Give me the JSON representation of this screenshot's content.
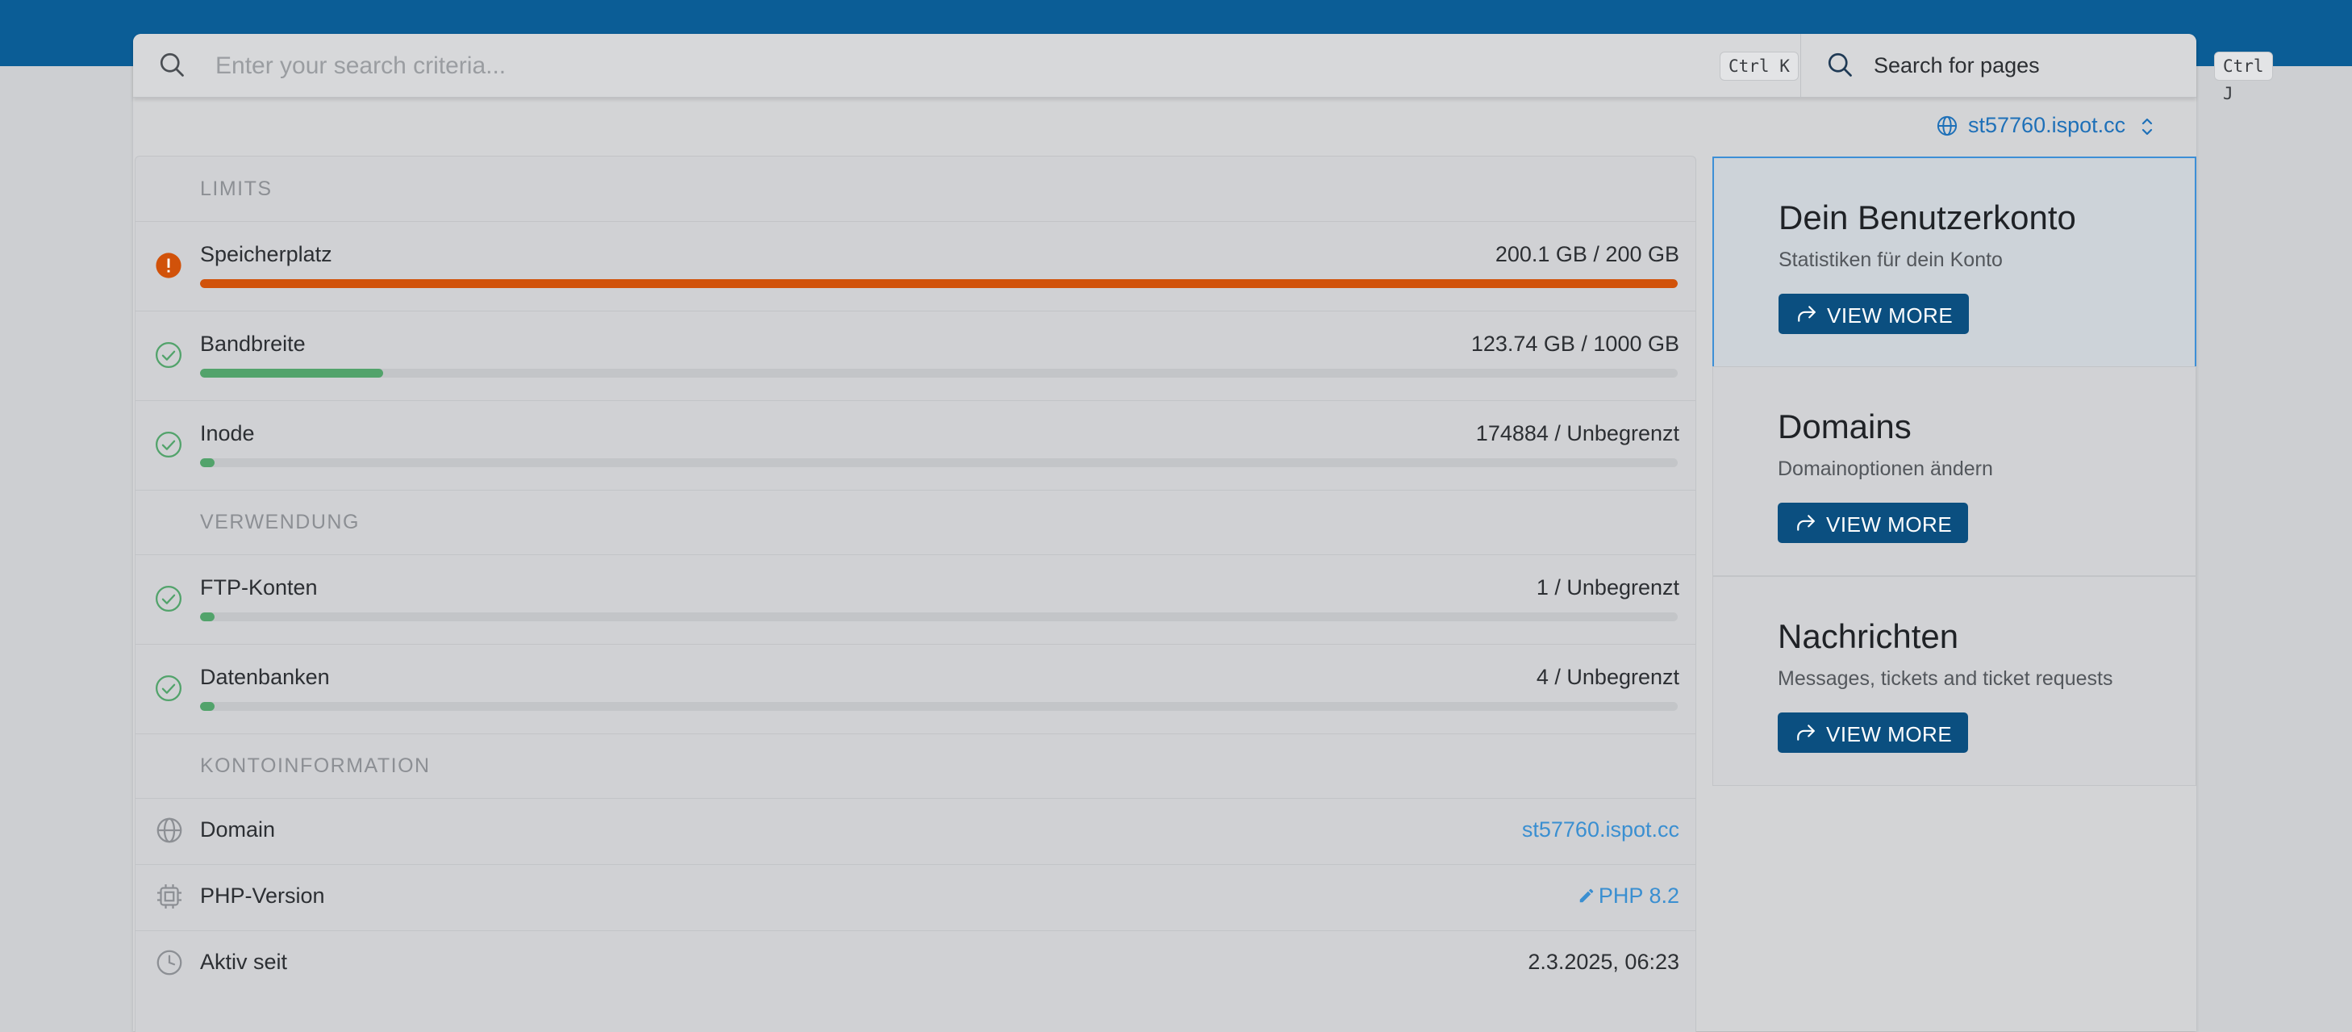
{
  "search": {
    "placeholder": "Enter your search criteria...",
    "shortcut": "Ctrl K",
    "pages_label": "Search for pages",
    "pages_shortcut": "Ctrl J"
  },
  "domain_selector": {
    "value": "st57760.ispot.cc"
  },
  "limits": {
    "heading": "LIMITS",
    "items": [
      {
        "label": "Speicherplatz",
        "value": "200.1 GB / 200 GB",
        "status": "warning",
        "fill": 1.0,
        "color": "#d1520a"
      },
      {
        "label": "Bandbreite",
        "value": "123.74 GB / 1000 GB",
        "status": "ok",
        "fill": 0.12374,
        "color": "#52a36b"
      },
      {
        "label": "Inode",
        "value": "174884 / Unbegrenzt",
        "status": "ok",
        "fill": 0.01,
        "color": "#52a36b"
      }
    ]
  },
  "usage": {
    "heading": "VERWENDUNG",
    "items": [
      {
        "label": "FTP-Konten",
        "value": "1 / Unbegrenzt",
        "status": "ok",
        "fill": 0.01,
        "color": "#52a36b"
      },
      {
        "label": "Datenbanken",
        "value": "4 / Unbegrenzt",
        "status": "ok",
        "fill": 0.01,
        "color": "#52a36b"
      }
    ]
  },
  "account_info": {
    "heading": "KONTOINFORMATION",
    "domain": {
      "label": "Domain",
      "value": "st57760.ispot.cc",
      "icon": "globe-icon"
    },
    "php": {
      "label": "PHP-Version",
      "value": "PHP 8.2",
      "icon": "cpu-chip-icon",
      "action_icon": "pencil-icon"
    },
    "active_since": {
      "label": "Aktiv seit",
      "value": "2.3.2025, 06:23",
      "icon": "clock-icon"
    }
  },
  "quick_cards": [
    {
      "title": "Dein Benutzerkonto",
      "subtitle": "Statistiken für dein Konto",
      "button": "VIEW MORE",
      "active": true
    },
    {
      "title": "Domains",
      "subtitle": "Domainoptionen ändern",
      "button": "VIEW MORE",
      "active": false
    },
    {
      "title": "Nachrichten",
      "subtitle": "Messages, tickets and ticket requests",
      "button": "VIEW MORE",
      "active": false
    }
  ],
  "colors": {
    "header": "#0b5d96",
    "accent": "#1e70b8",
    "warning": "#d1520a",
    "success": "#52a36b",
    "button": "#0b4f80"
  }
}
